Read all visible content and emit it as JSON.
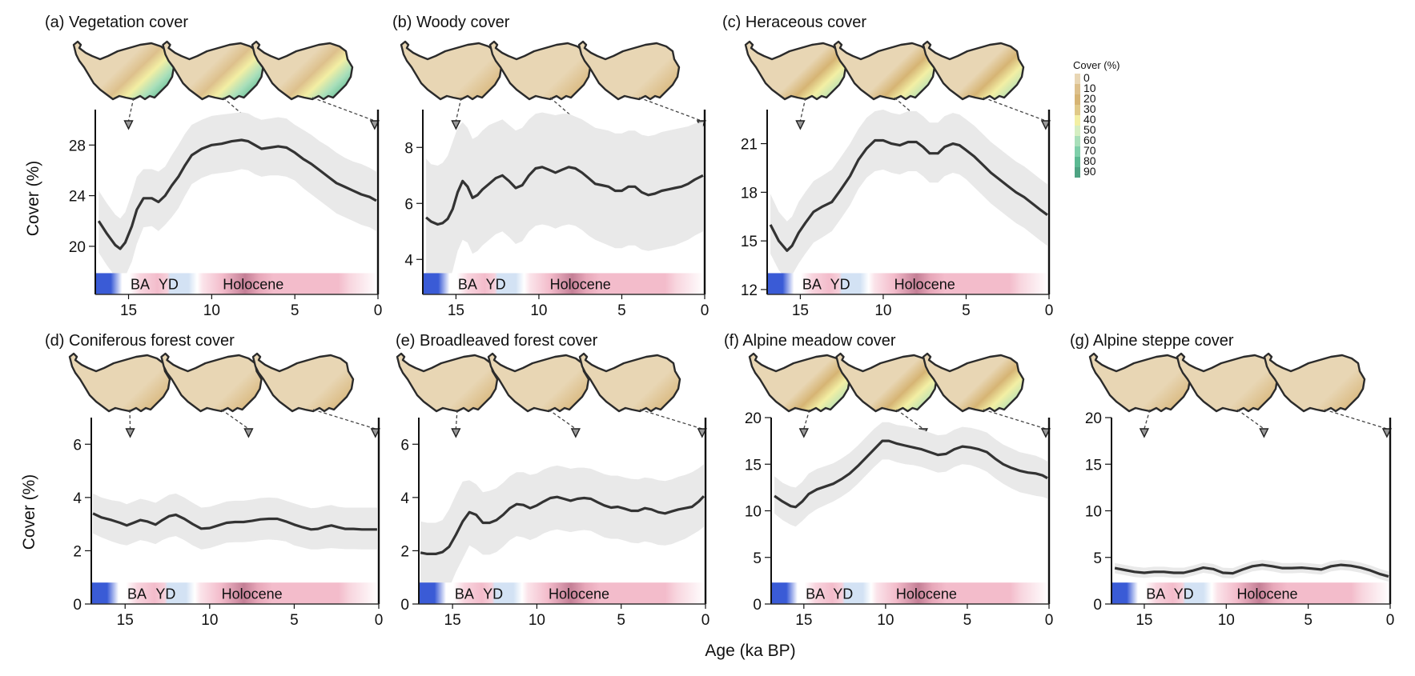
{
  "figure": {
    "xlabel": "Age (ka BP)",
    "ylabel": "Cover (%)",
    "legend": {
      "title": "Cover (%)",
      "levels": [
        "0",
        "10",
        "20",
        "30",
        "40",
        "50",
        "60",
        "70",
        "80",
        "90"
      ],
      "colors": [
        "#e8d6b4",
        "#ddc08c",
        "#d6b474",
        "#e0c988",
        "#f3efa4",
        "#d5eec2",
        "#a9dfba",
        "#7fcfaa",
        "#5bb992",
        "#4ea383"
      ]
    },
    "periods": [
      {
        "label": "BA"
      },
      {
        "label": "YD"
      },
      {
        "label": "Holocene"
      }
    ],
    "colors": {
      "line": "#333333",
      "band": "#e9e9e9",
      "cold": "#3a5bd6",
      "warm": "#f3bccb",
      "warm_dark": "#c47f96",
      "yd": "#d3e2f4"
    }
  },
  "chart_data": [
    {
      "id": "a",
      "type": "line",
      "title": "(a) Vegetation cover",
      "xlabel": "Age (ka BP)",
      "ylabel": "Cover (%)",
      "xlim": [
        17,
        0
      ],
      "ylim": [
        16.2,
        30.8
      ],
      "xticks": [
        "15",
        "10",
        "5",
        "0"
      ],
      "yticks": [
        "20",
        "24",
        "28"
      ],
      "ytick_values": [
        20,
        24,
        28
      ],
      "x": [
        16.8,
        16.3,
        15.8,
        15.5,
        15.2,
        14.8,
        14.5,
        14.1,
        13.6,
        13.2,
        12.8,
        12.4,
        12.0,
        11.6,
        11.2,
        10.6,
        10.0,
        9.4,
        8.8,
        8.2,
        7.8,
        7.4,
        7.0,
        6.5,
        6.0,
        5.5,
        5.0,
        4.5,
        4.0,
        3.5,
        3.0,
        2.5,
        2.0,
        1.5,
        1.0,
        0.5,
        0.1
      ],
      "y": [
        22.0,
        21.0,
        20.1,
        19.8,
        20.3,
        21.6,
        22.9,
        23.8,
        23.8,
        23.5,
        24.0,
        24.8,
        25.5,
        26.4,
        27.2,
        27.7,
        28.0,
        28.1,
        28.3,
        28.4,
        28.3,
        28.0,
        27.7,
        27.8,
        27.9,
        27.8,
        27.4,
        26.9,
        26.5,
        26.0,
        25.5,
        25.0,
        24.7,
        24.4,
        24.1,
        23.9,
        23.6
      ],
      "lower": [
        19.5,
        18.5,
        17.6,
        17.3,
        17.6,
        18.8,
        20.2,
        21.5,
        21.6,
        21.2,
        21.7,
        22.3,
        23.0,
        24.0,
        24.9,
        25.4,
        25.7,
        25.8,
        25.9,
        26.1,
        26.0,
        25.7,
        25.5,
        25.6,
        25.6,
        25.5,
        25.2,
        24.6,
        24.1,
        23.6,
        23.1,
        22.6,
        22.3,
        22.0,
        21.7,
        21.5,
        21.2
      ],
      "upper": [
        24.4,
        23.4,
        22.5,
        22.2,
        22.7,
        24.2,
        25.5,
        26.1,
        26.1,
        25.9,
        26.3,
        27.2,
        28.0,
        28.9,
        29.6,
        30.0,
        30.3,
        30.4,
        30.5,
        30.6,
        30.5,
        30.2,
        30.0,
        30.1,
        30.2,
        30.1,
        29.6,
        29.2,
        28.8,
        28.3,
        27.9,
        27.4,
        27.0,
        26.7,
        26.5,
        26.2,
        25.9
      ],
      "map_markers_ka": [
        15,
        7.7,
        0.2
      ]
    },
    {
      "id": "b",
      "type": "line",
      "title": "(b) Woody cover",
      "xlabel": "Age (ka BP)",
      "ylabel": "Cover (%)",
      "xlim": [
        17,
        0
      ],
      "ylim": [
        2.75,
        9.35
      ],
      "xticks": [
        "15",
        "10",
        "5",
        "0"
      ],
      "yticks": [
        "4",
        "6",
        "8"
      ],
      "ytick_values": [
        4,
        6,
        8
      ],
      "x": [
        16.8,
        16.5,
        16.1,
        15.8,
        15.5,
        15.2,
        14.9,
        14.6,
        14.3,
        14.0,
        13.7,
        13.4,
        13.0,
        12.6,
        12.2,
        11.8,
        11.4,
        11.0,
        10.6,
        10.2,
        9.8,
        9.4,
        9.0,
        8.6,
        8.2,
        7.8,
        7.4,
        7.0,
        6.6,
        6.2,
        5.8,
        5.4,
        5.0,
        4.6,
        4.2,
        3.8,
        3.4,
        3.0,
        2.6,
        2.2,
        1.8,
        1.4,
        1.0,
        0.6,
        0.1
      ],
      "y": [
        5.5,
        5.35,
        5.25,
        5.3,
        5.45,
        5.8,
        6.4,
        6.8,
        6.6,
        6.2,
        6.3,
        6.5,
        6.7,
        6.9,
        7.0,
        6.8,
        6.55,
        6.65,
        7.0,
        7.25,
        7.3,
        7.2,
        7.1,
        7.2,
        7.3,
        7.25,
        7.1,
        6.9,
        6.7,
        6.65,
        6.6,
        6.45,
        6.45,
        6.6,
        6.6,
        6.4,
        6.3,
        6.35,
        6.45,
        6.5,
        6.55,
        6.6,
        6.7,
        6.85,
        7.0
      ],
      "lower": [
        3.0,
        2.9,
        2.85,
        2.95,
        3.1,
        3.6,
        4.3,
        4.7,
        4.6,
        4.2,
        4.3,
        4.5,
        4.7,
        4.9,
        5.0,
        4.8,
        4.55,
        4.65,
        5.0,
        5.2,
        5.25,
        5.2,
        5.1,
        5.2,
        5.25,
        5.2,
        5.05,
        4.85,
        4.7,
        4.6,
        4.5,
        4.4,
        4.4,
        4.5,
        4.5,
        4.35,
        4.3,
        4.35,
        4.4,
        4.45,
        4.5,
        4.6,
        4.7,
        4.85,
        5.0
      ],
      "upper": [
        7.6,
        7.4,
        7.35,
        7.45,
        7.7,
        8.2,
        8.7,
        8.9,
        8.7,
        8.3,
        8.4,
        8.6,
        8.8,
        8.9,
        9.0,
        8.8,
        8.6,
        8.7,
        9.0,
        9.2,
        9.25,
        9.2,
        9.15,
        9.2,
        9.2,
        9.1,
        9.0,
        8.85,
        8.7,
        8.65,
        8.6,
        8.5,
        8.5,
        8.6,
        8.6,
        8.45,
        8.4,
        8.45,
        8.55,
        8.6,
        8.65,
        8.7,
        8.75,
        8.85,
        8.9
      ],
      "map_markers_ka": [
        15,
        7.7,
        0.2
      ]
    },
    {
      "id": "c",
      "type": "line",
      "title": "(c) Heraceous cover",
      "xlabel": "Age (ka BP)",
      "ylabel": "Cover (%)",
      "xlim": [
        17,
        0
      ],
      "ylim": [
        11.7,
        23.1
      ],
      "xticks": [
        "15",
        "10",
        "5",
        "0"
      ],
      "yticks": [
        "12",
        "15",
        "18",
        "21"
      ],
      "ytick_values": [
        12,
        15,
        18,
        21
      ],
      "x": [
        16.8,
        16.3,
        15.8,
        15.5,
        15.1,
        14.7,
        14.2,
        13.7,
        13.1,
        12.6,
        12.0,
        11.5,
        11.0,
        10.5,
        10.0,
        9.5,
        9.0,
        8.5,
        8.0,
        7.6,
        7.2,
        6.7,
        6.3,
        5.8,
        5.4,
        5.0,
        4.5,
        4.0,
        3.5,
        3.0,
        2.5,
        2.0,
        1.5,
        1.0,
        0.5,
        0.1
      ],
      "y": [
        16.0,
        15.0,
        14.4,
        14.7,
        15.5,
        16.1,
        16.8,
        17.1,
        17.4,
        18.1,
        19.0,
        20.0,
        20.7,
        21.2,
        21.2,
        21.0,
        20.9,
        21.1,
        21.1,
        20.8,
        20.4,
        20.4,
        20.8,
        21.0,
        20.9,
        20.6,
        20.2,
        19.7,
        19.2,
        18.8,
        18.4,
        18.0,
        17.7,
        17.3,
        16.9,
        16.6
      ],
      "lower": [
        14.2,
        13.2,
        12.6,
        12.9,
        13.6,
        14.2,
        14.9,
        15.2,
        15.6,
        16.3,
        17.2,
        18.2,
        18.9,
        19.3,
        19.4,
        19.2,
        19.1,
        19.3,
        19.3,
        19.0,
        18.6,
        18.6,
        19.0,
        19.2,
        19.1,
        18.8,
        18.3,
        17.8,
        17.3,
        16.9,
        16.5,
        16.1,
        15.8,
        15.4,
        15.0,
        14.7
      ],
      "upper": [
        17.9,
        16.8,
        16.2,
        16.5,
        17.4,
        18.0,
        18.7,
        19.0,
        19.4,
        20.1,
        21.0,
        21.9,
        22.6,
        23.0,
        23.1,
        22.9,
        22.8,
        23.0,
        23.0,
        22.7,
        22.3,
        22.3,
        22.7,
        22.9,
        22.8,
        22.5,
        22.1,
        21.6,
        21.1,
        20.7,
        20.3,
        19.9,
        19.6,
        19.2,
        18.8,
        18.5
      ],
      "map_markers_ka": [
        15,
        7.7,
        0.2
      ]
    },
    {
      "id": "d",
      "type": "line",
      "title": "(d) Coniferous forest cover",
      "xlabel": "Age (ka BP)",
      "ylabel": "Cover (%)",
      "xlim": [
        17,
        0
      ],
      "ylim": [
        0,
        7.0
      ],
      "xticks": [
        "15",
        "10",
        "5",
        "0"
      ],
      "yticks": [
        "0",
        "2",
        "4",
        "6"
      ],
      "ytick_values": [
        0,
        2,
        4,
        6
      ],
      "x": [
        16.9,
        16.4,
        15.8,
        15.3,
        14.9,
        14.5,
        14.1,
        13.7,
        13.2,
        12.8,
        12.4,
        12.0,
        11.5,
        11.0,
        10.5,
        10.0,
        9.5,
        9.0,
        8.5,
        8.0,
        7.5,
        7.0,
        6.5,
        6.0,
        5.5,
        5.0,
        4.5,
        4.0,
        3.6,
        3.2,
        2.8,
        2.4,
        2.0,
        1.5,
        1.0,
        0.5,
        0.1
      ],
      "y": [
        3.4,
        3.25,
        3.15,
        3.05,
        2.95,
        3.05,
        3.15,
        3.1,
        2.98,
        3.15,
        3.3,
        3.35,
        3.2,
        3.0,
        2.83,
        2.85,
        2.95,
        3.05,
        3.08,
        3.08,
        3.12,
        3.18,
        3.2,
        3.2,
        3.1,
        2.98,
        2.88,
        2.8,
        2.82,
        2.9,
        2.95,
        2.88,
        2.82,
        2.82,
        2.8,
        2.8,
        2.8
      ],
      "lower": [
        2.65,
        2.5,
        2.35,
        2.25,
        2.2,
        2.3,
        2.4,
        2.35,
        2.25,
        2.4,
        2.5,
        2.55,
        2.4,
        2.2,
        2.05,
        2.1,
        2.2,
        2.3,
        2.32,
        2.32,
        2.35,
        2.4,
        2.42,
        2.4,
        2.35,
        2.2,
        2.12,
        2.05,
        2.05,
        2.08,
        2.1,
        2.08,
        2.06,
        2.06,
        2.05,
        2.05,
        2.05
      ],
      "upper": [
        4.15,
        4.0,
        3.9,
        3.85,
        3.75,
        3.85,
        3.95,
        3.9,
        3.8,
        3.95,
        4.1,
        4.15,
        4.0,
        3.8,
        3.62,
        3.65,
        3.75,
        3.85,
        3.88,
        3.88,
        3.92,
        3.98,
        4.0,
        3.98,
        3.88,
        3.78,
        3.68,
        3.6,
        3.62,
        3.68,
        3.72,
        3.65,
        3.62,
        3.62,
        3.62,
        3.62,
        3.62
      ],
      "map_markers_ka": [
        14.7,
        7.7,
        0.2
      ]
    },
    {
      "id": "e",
      "type": "line",
      "title": "(e) Broadleaved forest cover",
      "xlabel": "Age (ka BP)",
      "ylabel": "Cover (%)",
      "xlim": [
        17,
        0
      ],
      "ylim": [
        0,
        7.0
      ],
      "xticks": [
        "15",
        "10",
        "5",
        "0"
      ],
      "yticks": [
        "0",
        "2",
        "4",
        "6"
      ],
      "ytick_values": [
        0,
        2,
        4,
        6
      ],
      "x": [
        16.9,
        16.5,
        16.0,
        15.6,
        15.2,
        14.8,
        14.4,
        14.0,
        13.6,
        13.2,
        12.8,
        12.4,
        12.0,
        11.6,
        11.2,
        10.8,
        10.4,
        10.0,
        9.6,
        9.2,
        8.8,
        8.4,
        8.0,
        7.6,
        7.2,
        6.8,
        6.4,
        6.0,
        5.6,
        5.2,
        4.8,
        4.4,
        4.0,
        3.6,
        3.2,
        2.8,
        2.4,
        2.0,
        1.6,
        1.2,
        0.8,
        0.4,
        0.1
      ],
      "y": [
        1.93,
        1.88,
        1.88,
        1.95,
        2.15,
        2.6,
        3.1,
        3.45,
        3.35,
        3.05,
        3.05,
        3.15,
        3.35,
        3.6,
        3.75,
        3.72,
        3.6,
        3.7,
        3.85,
        3.98,
        4.02,
        3.95,
        3.88,
        3.95,
        3.98,
        3.95,
        3.82,
        3.7,
        3.62,
        3.65,
        3.58,
        3.5,
        3.5,
        3.6,
        3.55,
        3.45,
        3.4,
        3.48,
        3.55,
        3.6,
        3.65,
        3.85,
        4.05
      ],
      "lower": [
        0.25,
        0.2,
        0.2,
        0.3,
        0.6,
        1.2,
        1.7,
        2.2,
        2.05,
        1.85,
        1.85,
        1.95,
        2.15,
        2.4,
        2.55,
        2.5,
        2.4,
        2.5,
        2.65,
        2.75,
        2.8,
        2.75,
        2.7,
        2.75,
        2.78,
        2.75,
        2.62,
        2.5,
        2.45,
        2.45,
        2.38,
        2.3,
        2.28,
        2.35,
        2.3,
        2.22,
        2.2,
        2.25,
        2.35,
        2.45,
        2.6,
        2.75,
        2.9
      ],
      "upper": [
        3.1,
        3.05,
        3.05,
        3.15,
        3.55,
        4.1,
        4.6,
        4.65,
        4.5,
        4.2,
        4.25,
        4.35,
        4.55,
        4.8,
        4.95,
        4.95,
        4.85,
        4.9,
        5.05,
        5.15,
        5.2,
        5.15,
        5.08,
        5.12,
        5.12,
        5.08,
        4.98,
        4.88,
        4.82,
        4.82,
        4.75,
        4.7,
        4.68,
        4.75,
        4.72,
        4.65,
        4.62,
        4.68,
        4.78,
        4.85,
        4.95,
        5.1,
        5.25
      ],
      "map_markers_ka": [
        14.8,
        7.7,
        0.2
      ]
    },
    {
      "id": "f",
      "type": "line",
      "title": "(f) Alpine meadow cover",
      "xlabel": "Age (ka BP)",
      "ylabel": "Cover (%)",
      "xlim": [
        17,
        0
      ],
      "ylim": [
        0,
        20.0
      ],
      "xticks": [
        "15",
        "10",
        "5",
        "0"
      ],
      "yticks": [
        "0",
        "5",
        "10",
        "15",
        "20"
      ],
      "ytick_values": [
        0,
        5,
        10,
        15,
        20
      ],
      "x": [
        16.8,
        16.3,
        15.8,
        15.5,
        15.1,
        14.7,
        14.2,
        13.7,
        13.2,
        12.7,
        12.2,
        11.7,
        11.2,
        10.7,
        10.2,
        9.8,
        9.3,
        8.8,
        8.3,
        7.8,
        7.3,
        6.8,
        6.3,
        5.8,
        5.3,
        4.8,
        4.3,
        3.8,
        3.3,
        2.8,
        2.3,
        1.8,
        1.3,
        0.8,
        0.4,
        0.1
      ],
      "y": [
        11.6,
        11.0,
        10.5,
        10.4,
        11.0,
        11.8,
        12.3,
        12.6,
        12.9,
        13.4,
        14.0,
        14.8,
        15.7,
        16.6,
        17.5,
        17.5,
        17.2,
        17.0,
        16.8,
        16.6,
        16.3,
        16.0,
        16.1,
        16.6,
        16.9,
        16.8,
        16.6,
        16.3,
        15.6,
        15.0,
        14.6,
        14.3,
        14.1,
        14.0,
        13.8,
        13.5
      ],
      "lower": [
        9.7,
        9.0,
        8.5,
        8.3,
        8.9,
        9.6,
        10.2,
        10.6,
        11.0,
        11.5,
        12.1,
        12.9,
        13.8,
        14.7,
        15.5,
        15.5,
        15.2,
        15.0,
        14.9,
        14.7,
        14.4,
        14.1,
        14.2,
        14.7,
        15.0,
        14.9,
        14.6,
        14.2,
        13.5,
        12.9,
        12.4,
        12.0,
        11.8,
        11.6,
        11.5,
        11.3
      ],
      "upper": [
        13.7,
        13.0,
        12.6,
        12.5,
        13.1,
        14.0,
        14.5,
        14.8,
        15.1,
        15.6,
        16.2,
        17.0,
        17.9,
        18.8,
        19.5,
        19.5,
        19.2,
        19.1,
        18.9,
        18.7,
        18.4,
        18.1,
        18.2,
        18.7,
        19.0,
        18.9,
        18.7,
        18.4,
        17.7,
        17.1,
        16.7,
        16.3,
        16.1,
        15.9,
        15.6,
        15.3
      ],
      "map_markers_ka": [
        15,
        7.7,
        0.2
      ]
    },
    {
      "id": "g",
      "type": "line",
      "title": "(g) Alpine steppe cover",
      "xlabel": "Age (ka BP)",
      "ylabel": "Cover (%)",
      "xlim": [
        17,
        0
      ],
      "ylim": [
        0,
        20.0
      ],
      "xticks": [
        "15",
        "10",
        "5",
        "0"
      ],
      "yticks": [
        "0",
        "5",
        "10",
        "15",
        "20"
      ],
      "ytick_values": [
        0,
        5,
        10,
        15,
        20
      ],
      "x": [
        16.8,
        16.2,
        15.6,
        15.0,
        14.4,
        13.8,
        13.2,
        12.6,
        12.0,
        11.4,
        10.8,
        10.2,
        9.6,
        9.0,
        8.4,
        7.8,
        7.2,
        6.6,
        6.0,
        5.4,
        4.8,
        4.2,
        3.6,
        3.0,
        2.4,
        1.8,
        1.2,
        0.6,
        0.1
      ],
      "y": [
        3.85,
        3.65,
        3.45,
        3.35,
        3.45,
        3.45,
        3.35,
        3.35,
        3.6,
        3.9,
        3.75,
        3.35,
        3.3,
        3.7,
        4.05,
        4.2,
        4.05,
        3.85,
        3.85,
        3.9,
        3.8,
        3.7,
        4.05,
        4.2,
        4.1,
        3.9,
        3.6,
        3.2,
        2.95
      ],
      "lower": [
        3.3,
        3.1,
        2.9,
        2.8,
        2.9,
        2.9,
        2.8,
        2.8,
        3.05,
        3.35,
        3.2,
        2.8,
        2.75,
        3.15,
        3.5,
        3.65,
        3.5,
        3.3,
        3.3,
        3.35,
        3.25,
        3.15,
        3.5,
        3.65,
        3.55,
        3.35,
        3.05,
        2.65,
        2.4
      ],
      "upper": [
        4.4,
        4.2,
        4.0,
        3.9,
        4.0,
        4.0,
        3.9,
        3.9,
        4.15,
        4.45,
        4.3,
        3.9,
        3.85,
        4.25,
        4.6,
        4.75,
        4.6,
        4.4,
        4.4,
        4.45,
        4.35,
        4.25,
        4.6,
        4.75,
        4.65,
        4.45,
        4.15,
        3.75,
        3.5
      ],
      "map_markers_ka": [
        15,
        7.7,
        0.2
      ]
    }
  ]
}
